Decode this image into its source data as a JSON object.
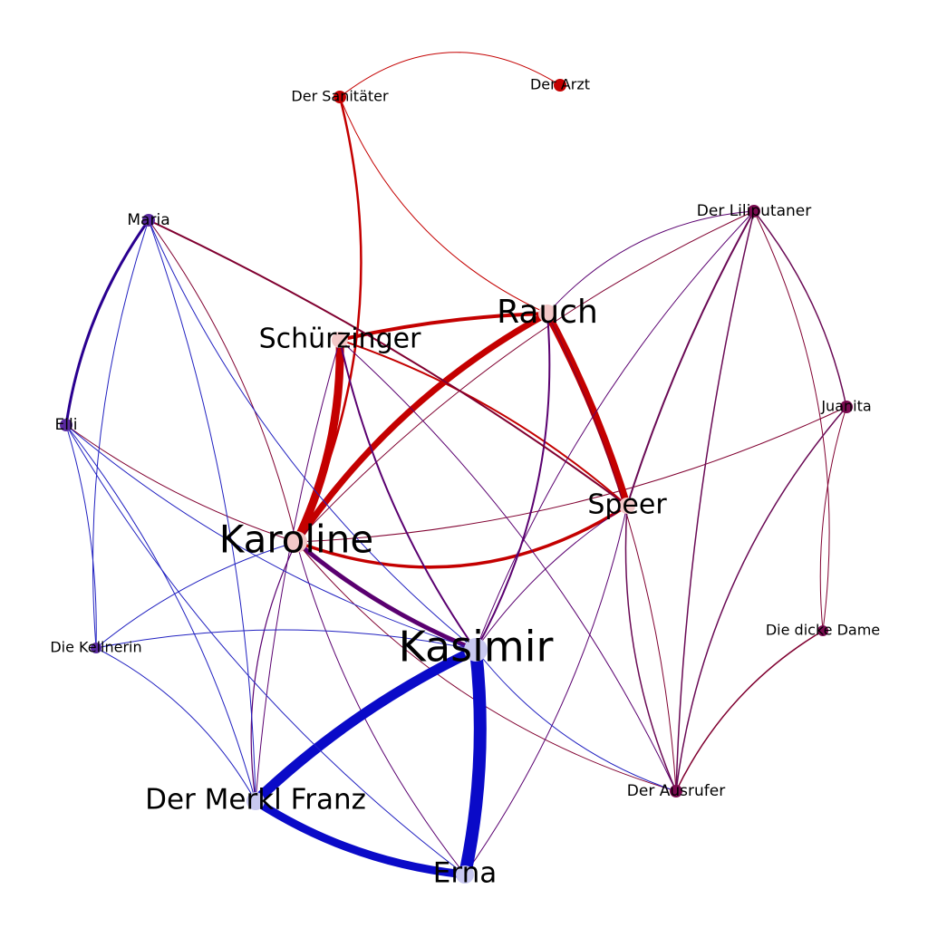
{
  "colors": {
    "red": "#c40000",
    "blue": "#0a0ac8",
    "purple": "#5a0070",
    "crimson": "#800030",
    "plum": "#6a0a55",
    "violet": "#2a0090",
    "mediumblue": "#2020c0"
  },
  "nodes": [
    {
      "id": "karoline",
      "label": "Karoline",
      "color": "#f3c8c8"
    },
    {
      "id": "kasimir",
      "label": "Kasimir",
      "color": "#c8c8f0"
    },
    {
      "id": "rauch",
      "label": "Rauch",
      "color": "#f3c8c8"
    },
    {
      "id": "schuerzinger",
      "label": "Schürzinger",
      "color": "#f3c8c8"
    },
    {
      "id": "speer",
      "label": "Speer",
      "color": "#f3c8c8"
    },
    {
      "id": "merkl",
      "label": "Der Merkl Franz",
      "color": "#c8c8f0"
    },
    {
      "id": "erna",
      "label": "Erna",
      "color": "#c8c8f0"
    },
    {
      "id": "sanitaeter",
      "label": "Der Sanitäter",
      "color": "#c40000"
    },
    {
      "id": "arzt",
      "label": "Der Arzt",
      "color": "#c40000"
    },
    {
      "id": "maria",
      "label": "Maria",
      "color": "#5a2aa0"
    },
    {
      "id": "elli",
      "label": "Elli",
      "color": "#5a2aa0"
    },
    {
      "id": "kellnerin",
      "label": "Die Kellnerin",
      "color": "#5a2aa0"
    },
    {
      "id": "liliputaner",
      "label": "Der Liliputaner",
      "color": "#7a0a50"
    },
    {
      "id": "juanita",
      "label": "Juanita",
      "color": "#7a0a50"
    },
    {
      "id": "dickedame",
      "label": "Die dicke Dame",
      "color": "#7a0a50"
    },
    {
      "id": "ausrufer",
      "label": "Der Ausrufer",
      "color": "#7a0a50"
    }
  ]
}
